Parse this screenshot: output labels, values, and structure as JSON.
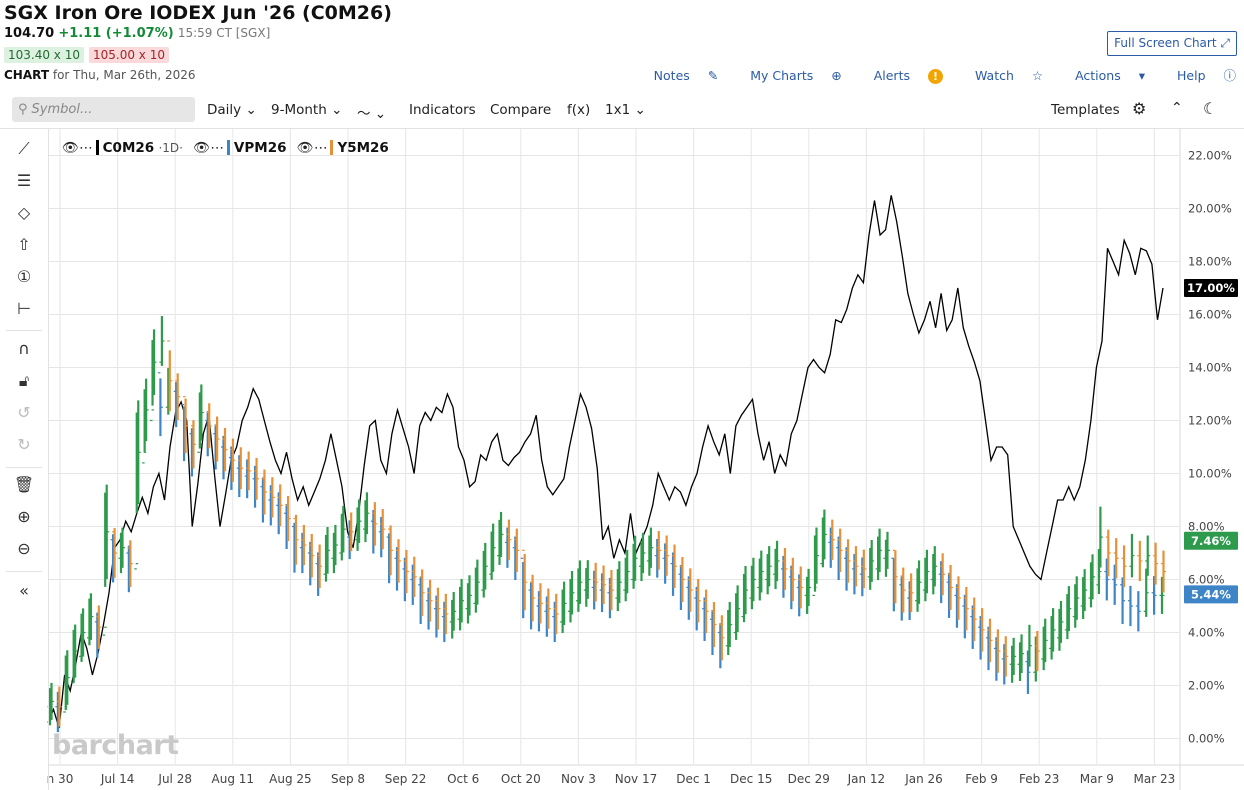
{
  "header": {
    "title": "SGX Iron Ore IODEX Jun '26 (C0M26)",
    "price": "104.70",
    "change": "+1.11 (+1.07%)",
    "timestamp": "15:59 CT [SGX]",
    "bid": "103.40 x 10",
    "ask": "105.00 x 10",
    "chart_label": "CHART",
    "chart_for": "for Thu, Mar 26th, 2026",
    "full_screen": "Full Screen Chart"
  },
  "actions": {
    "notes": "Notes",
    "my_charts": "My Charts",
    "alerts": "Alerts",
    "watch": "Watch",
    "actions": "Actions",
    "help": "Help"
  },
  "toolbar": {
    "search_placeholder": "Symbol...",
    "interval": "Daily",
    "range": "9-Month",
    "indicators": "Indicators",
    "compare": "Compare",
    "fx": "f(x)",
    "layout": "1x1",
    "templates": "Templates"
  },
  "legend": {
    "s1": {
      "name": "C0M26",
      "sub": "·1D·",
      "color": "#000000"
    },
    "s2": {
      "name": "VPM26",
      "color": "#3d85c6"
    },
    "s3": {
      "name": "Y5M26",
      "color": "#e69138"
    }
  },
  "logo": "barchart",
  "chart_data": {
    "type": "line",
    "y_axis": {
      "min": -1,
      "max": 23,
      "ticks": [
        "0.00%",
        "2.00%",
        "4.00%",
        "6.00%",
        "8.00%",
        "10.00%",
        "12.00%",
        "14.00%",
        "16.00%",
        "18.00%",
        "20.00%",
        "22.00%"
      ],
      "tick_values": [
        0,
        2,
        4,
        6,
        8,
        10,
        12,
        14,
        16,
        18,
        20,
        22
      ],
      "position": "right",
      "grid": true
    },
    "x_axis": {
      "labels": [
        "n 30",
        "Jul 14",
        "Jul 28",
        "Aug 11",
        "Aug 25",
        "Sep 8",
        "Sep 22",
        "Oct 6",
        "Oct 20",
        "Nov 3",
        "Nov 17",
        "Dec 1",
        "Dec 15",
        "Dec 29",
        "Jan 12",
        "Jan 26",
        "Feb 9",
        "Feb 23",
        "Mar 9",
        "Mar 23"
      ],
      "grid": true
    },
    "last_values": [
      {
        "label": "17.00%",
        "value": 17.0,
        "color": "#000000"
      },
      {
        "label": "7.46%",
        "value": 7.46,
        "color": "#2e9b4c"
      },
      {
        "label": "5.44%",
        "value": 5.44,
        "color": "#3d85c6"
      }
    ],
    "series": [
      {
        "name": "C0M26",
        "color": "#000000",
        "style": "line",
        "values": [
          0.6,
          1.1,
          0.4,
          2.4,
          1.8,
          2.8,
          4.0,
          3.4,
          2.4,
          3.2,
          4.3,
          5.5,
          7.2,
          7.5,
          8.2,
          7.8,
          8.5,
          9.1,
          8.5,
          9.5,
          10.0,
          9.0,
          11.0,
          12.3,
          12.7,
          12.0,
          8.0,
          9.6,
          11.5,
          12.2,
          10.0,
          8.0,
          9.2,
          10.5,
          11.0,
          12.0,
          12.5,
          13.2,
          12.8,
          12.0,
          11.2,
          10.5,
          10.0,
          10.8,
          9.8,
          9.0,
          9.5,
          8.8,
          9.3,
          9.8,
          10.5,
          11.5,
          10.5,
          9.5,
          7.8,
          7.2,
          8.5,
          10.3,
          11.8,
          12.0,
          10.5,
          10.0,
          11.5,
          12.4,
          11.7,
          11.0,
          10.0,
          11.8,
          12.3,
          12.0,
          12.5,
          12.3,
          13.0,
          12.5,
          11.0,
          10.5,
          9.5,
          9.7,
          10.7,
          10.5,
          11.2,
          11.5,
          10.5,
          10.3,
          10.6,
          10.8,
          11.2,
          11.5,
          12.2,
          10.5,
          9.5,
          9.2,
          9.5,
          9.8,
          11.0,
          12.0,
          13.0,
          12.5,
          11.7,
          10.2,
          7.5,
          8.0,
          6.8,
          7.5,
          7.0,
          8.5,
          7.0,
          7.5,
          8.0,
          8.8,
          10.0,
          9.5,
          9.0,
          9.5,
          9.3,
          8.8,
          9.5,
          10.0,
          11.0,
          11.8,
          11.2,
          10.7,
          11.5,
          10.0,
          11.8,
          12.2,
          12.5,
          12.8,
          11.5,
          10.5,
          11.2,
          10.0,
          10.7,
          10.3,
          11.5,
          12.0,
          13.0,
          14.0,
          14.3,
          14.0,
          13.8,
          14.5,
          15.8,
          15.7,
          16.2,
          17.0,
          17.5,
          17.2,
          19.0,
          20.3,
          19.0,
          19.2,
          20.5,
          19.5,
          18.2,
          16.8,
          16.0,
          15.3,
          15.8,
          16.5,
          15.5,
          16.8,
          15.4,
          15.8,
          17.0,
          15.5,
          14.8,
          14.2,
          13.5,
          12.0,
          10.5,
          11.0,
          11.0,
          10.7,
          8.0,
          7.5,
          7.0,
          6.5,
          6.2,
          6.0,
          7.0,
          8.0,
          9.0,
          9.0,
          9.5,
          9.0,
          9.5,
          10.5,
          12.0,
          14.0,
          15.0,
          18.5,
          18.0,
          17.5,
          18.8,
          18.3,
          17.5,
          18.5,
          18.4,
          17.9,
          15.8,
          17.0
        ]
      },
      {
        "name": "VPM26",
        "color": "#3d85c6",
        "style": "ohlc",
        "values": [
          1.2,
          1.0,
          2.1,
          3.1,
          3.8,
          4.4,
          3.9,
          7.5,
          6.8,
          7.0,
          6.4,
          10.4,
          12.0,
          13.8,
          12.5,
          13.1,
          12.6,
          11.5,
          10.8,
          12.0,
          11.5,
          11.0,
          10.6,
          10.2,
          9.9,
          9.8,
          9.5,
          9.0,
          8.8,
          8.5,
          8.0,
          7.2,
          7.0,
          6.6,
          6.2,
          6.8,
          7.0,
          7.6,
          7.5,
          7.9,
          8.2,
          7.8,
          7.6,
          6.8,
          6.4,
          6.0,
          5.8,
          5.2,
          4.9,
          4.6,
          4.4,
          4.5,
          4.9,
          5.1,
          5.6,
          6.2,
          6.9,
          7.4,
          7.2,
          6.8,
          5.6,
          5.0,
          4.8,
          4.6,
          4.4,
          4.8,
          5.2,
          5.6,
          5.7,
          5.6,
          5.5,
          5.3,
          5.6,
          6.0,
          6.5,
          6.7,
          6.9,
          6.8,
          6.6,
          6.2,
          5.7,
          5.3,
          4.9,
          4.5,
          4.0,
          3.5,
          4.0,
          4.6,
          5.3,
          5.7,
          6.0,
          6.2,
          6.4,
          6.1,
          5.7,
          5.4,
          5.4,
          6.6,
          7.4,
          7.2,
          6.8,
          6.4,
          6.2,
          6.1,
          6.4,
          6.8,
          6.8,
          5.8,
          5.3,
          5.2,
          5.6,
          6.0,
          6.2,
          5.9,
          5.4,
          5.0,
          4.6,
          4.2,
          3.8,
          3.4,
          3.0,
          2.8,
          2.8,
          2.9,
          2.5,
          3.0,
          3.4,
          3.8,
          4.1,
          4.6,
          5.0,
          5.3,
          5.8,
          6.3,
          6.0,
          5.8,
          5.2,
          5.0,
          4.8,
          5.5,
          5.4,
          5.4
        ]
      },
      {
        "name": "Y5M26",
        "color": "#e69138",
        "style": "ohlc",
        "values": [
          1.4,
          1.2,
          2.3,
          3.3,
          4.0,
          4.6,
          4.2,
          7.8,
          7.0,
          7.2,
          6.6,
          10.8,
          12.4,
          14.2,
          15.0,
          13.5,
          12.9,
          11.8,
          11.1,
          12.3,
          11.8,
          11.3,
          10.9,
          10.5,
          10.2,
          10.1,
          9.8,
          9.3,
          9.1,
          8.8,
          8.3,
          7.5,
          7.3,
          6.9,
          6.5,
          7.1,
          7.3,
          7.9,
          7.8,
          8.2,
          8.5,
          8.1,
          7.9,
          7.1,
          6.7,
          6.3,
          6.1,
          5.5,
          5.2,
          4.9,
          4.7,
          4.8,
          5.2,
          5.4,
          5.9,
          6.5,
          7.2,
          7.7,
          7.5,
          7.1,
          5.9,
          5.3,
          5.1,
          4.9,
          4.7,
          5.1,
          5.5,
          5.9,
          6.0,
          5.9,
          5.8,
          5.6,
          5.9,
          6.3,
          6.8,
          7.0,
          7.2,
          7.1,
          6.9,
          6.5,
          6.0,
          5.6,
          5.2,
          4.8,
          4.3,
          3.8,
          4.3,
          4.9,
          5.6,
          6.0,
          6.3,
          6.5,
          6.7,
          6.4,
          6.0,
          5.7,
          5.7,
          6.9,
          7.7,
          7.5,
          7.1,
          6.7,
          6.5,
          6.4,
          6.7,
          7.1,
          7.1,
          6.1,
          5.6,
          5.5,
          5.9,
          6.3,
          6.5,
          6.2,
          5.7,
          5.3,
          4.9,
          4.5,
          4.1,
          3.7,
          3.3,
          3.1,
          3.1,
          3.2,
          3.5,
          3.3,
          3.7,
          4.1,
          4.4,
          4.9,
          5.3,
          5.6,
          6.1,
          7.6,
          7.0,
          6.8,
          6.5,
          6.9,
          6.7,
          6.9,
          6.6,
          6.3
        ]
      }
    ]
  }
}
